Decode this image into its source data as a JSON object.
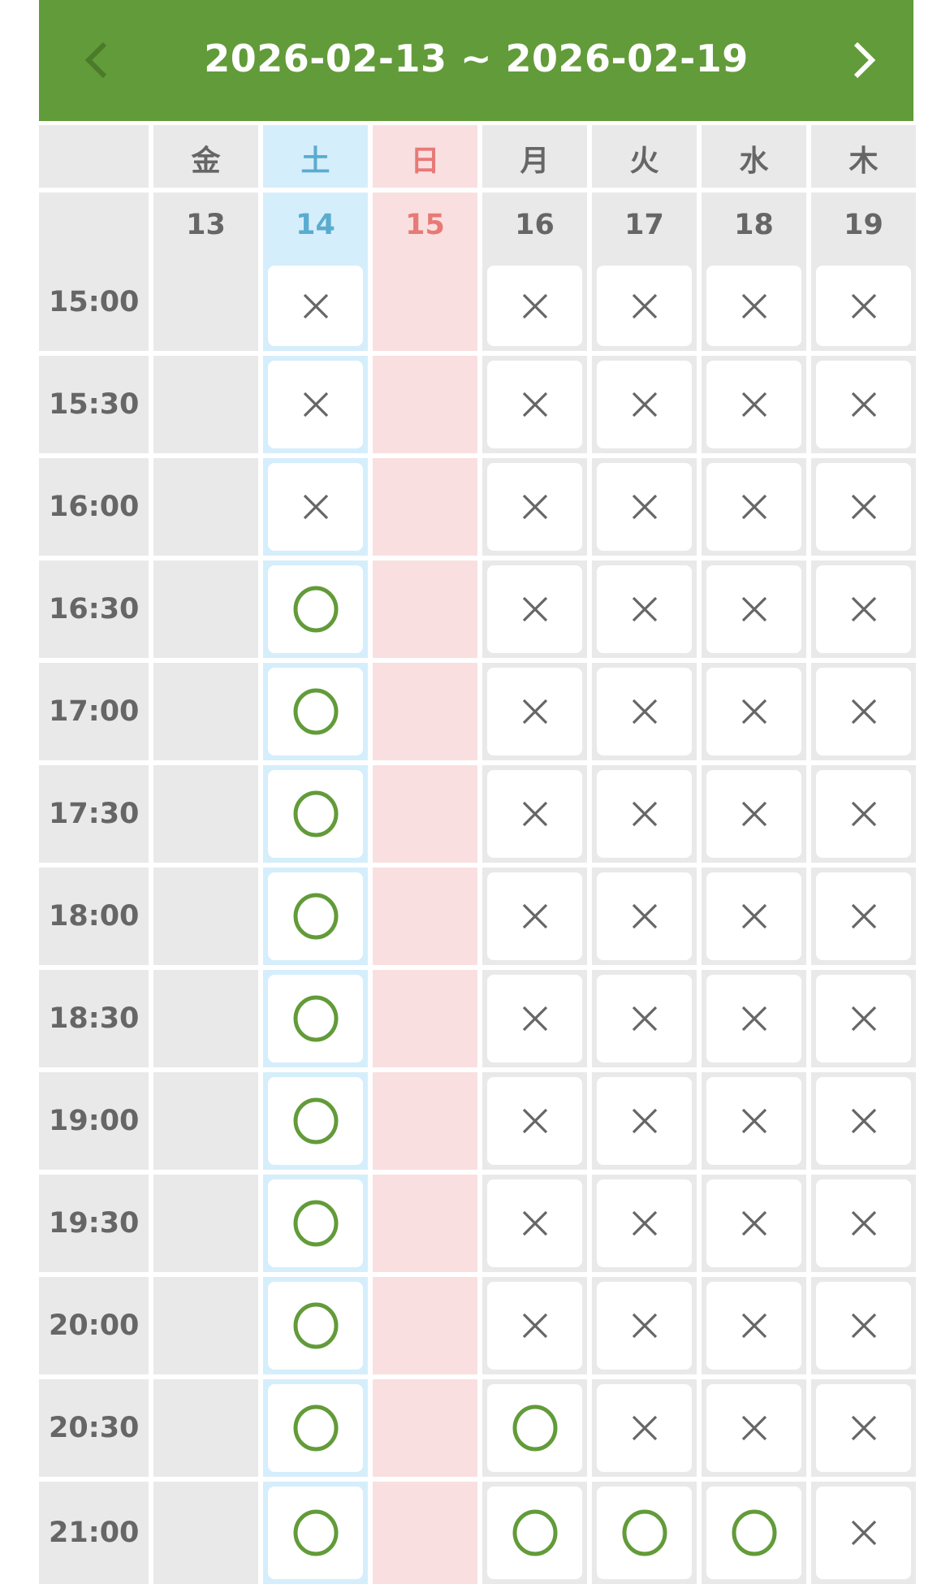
{
  "header": {
    "title": "2026-02-13 ~ 2026-02-19",
    "prev_icon": "chevron-left-icon",
    "next_icon": "chevron-right-icon"
  },
  "colors": {
    "header": "#629b39",
    "available": "#629b39",
    "unavailable": "#666666",
    "saturday": "#5aaccf",
    "sunday": "#e77a76"
  },
  "times": [
    "15:00",
    "15:30",
    "16:00",
    "16:30",
    "17:00",
    "17:30",
    "18:00",
    "18:30",
    "19:00",
    "19:30",
    "20:00",
    "20:30",
    "21:00"
  ],
  "days": [
    {
      "weekday": "金",
      "date": "13",
      "type": "closed",
      "slots": []
    },
    {
      "weekday": "土",
      "date": "14",
      "type": "sat",
      "slots": [
        "x",
        "x",
        "x",
        "o",
        "o",
        "o",
        "o",
        "o",
        "o",
        "o",
        "o",
        "o",
        "o"
      ]
    },
    {
      "weekday": "日",
      "date": "15",
      "type": "sun",
      "slots": []
    },
    {
      "weekday": "月",
      "date": "16",
      "type": "normal",
      "slots": [
        "x",
        "x",
        "x",
        "x",
        "x",
        "x",
        "x",
        "x",
        "x",
        "x",
        "x",
        "o",
        "o"
      ]
    },
    {
      "weekday": "火",
      "date": "17",
      "type": "normal",
      "slots": [
        "x",
        "x",
        "x",
        "x",
        "x",
        "x",
        "x",
        "x",
        "x",
        "x",
        "x",
        "x",
        "o"
      ]
    },
    {
      "weekday": "水",
      "date": "18",
      "type": "normal",
      "slots": [
        "x",
        "x",
        "x",
        "x",
        "x",
        "x",
        "x",
        "x",
        "x",
        "x",
        "x",
        "x",
        "o"
      ]
    },
    {
      "weekday": "木",
      "date": "19",
      "type": "normal",
      "slots": [
        "x",
        "x",
        "x",
        "x",
        "x",
        "x",
        "x",
        "x",
        "x",
        "x",
        "x",
        "x",
        "x"
      ]
    }
  ],
  "legend": {
    "o": "available-circle-icon",
    "x": "unavailable-cross-icon"
  }
}
